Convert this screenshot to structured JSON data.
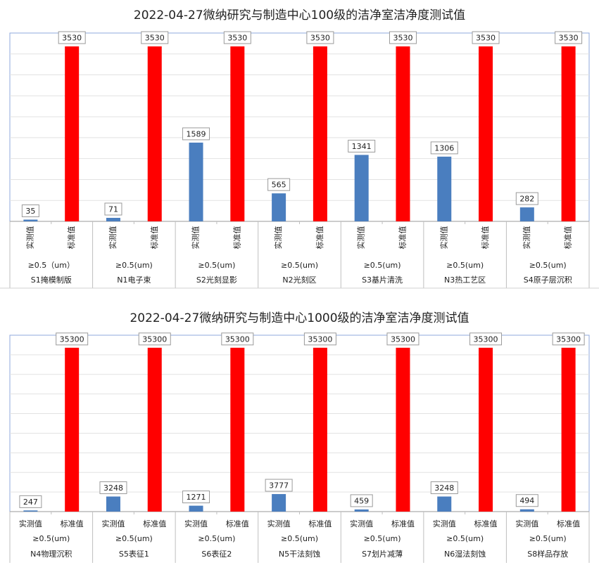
{
  "charts": [
    {
      "chart_data": {
        "type": "bar",
        "title": "2022-04-27微纳研究与制造中心100级的洁净室洁净度测试值",
        "series_labels": [
          "实测值",
          "标准值"
        ],
        "colors": {
          "measured": "#4A7EBF",
          "standard": "#FF0000"
        },
        "ylim": [
          0,
          3800
        ],
        "categories": [
          {
            "particle_size": "≥0.5（um）",
            "location": "S1掩模制版",
            "measured": 35,
            "standard": 3530
          },
          {
            "particle_size": "≥0.5(um)",
            "location": "N1电子束",
            "measured": 71,
            "standard": 3530
          },
          {
            "particle_size": "≥0.5(um)",
            "location": "S2光刻显影",
            "measured": 1589,
            "standard": 3530
          },
          {
            "particle_size": "≥0.5(um)",
            "location": "N2光刻区",
            "measured": 565,
            "standard": 3530
          },
          {
            "particle_size": "≥0.5(um)",
            "location": "S3基片清洗",
            "measured": 1341,
            "standard": 3530
          },
          {
            "particle_size": "≥0.5(um)",
            "location": "N3热工艺区",
            "measured": 1306,
            "standard": 3530
          },
          {
            "particle_size": "≥0.5(um)",
            "location": "S4原子层沉积",
            "measured": 282,
            "standard": 3530
          }
        ],
        "vertical_series_labels": true,
        "grid": true
      }
    },
    {
      "chart_data": {
        "type": "bar",
        "title": "2022-04-27微纳研究与制造中心1000级的洁净室洁净度测试值",
        "series_labels": [
          "实测值",
          "标准值"
        ],
        "colors": {
          "measured": "#4A7EBF",
          "standard": "#FF0000"
        },
        "ylim": [
          0,
          38000
        ],
        "categories": [
          {
            "particle_size": "≥0.5(um)",
            "location": "N4物理沉积",
            "measured": 247,
            "standard": 35300
          },
          {
            "particle_size": "≥0.5(um)",
            "location": "S5表征1",
            "measured": 3248,
            "standard": 35300
          },
          {
            "particle_size": "≥0.5(um)",
            "location": "S6表征2",
            "measured": 1271,
            "standard": 35300
          },
          {
            "particle_size": "≥0.5(um)",
            "location": "N5干法刻蚀",
            "measured": 3777,
            "standard": 35300
          },
          {
            "particle_size": "≥0.5(um)",
            "location": "S7划片减薄",
            "measured": 459,
            "standard": 35300
          },
          {
            "particle_size": "≥0.5(um)",
            "location": "N6湿法刻蚀",
            "measured": 3248,
            "standard": 35300
          },
          {
            "particle_size": "≥0.5(um)",
            "location": "S8样品存放",
            "measured": 494,
            "standard": 35300
          }
        ],
        "vertical_series_labels": false,
        "grid": true
      }
    }
  ]
}
